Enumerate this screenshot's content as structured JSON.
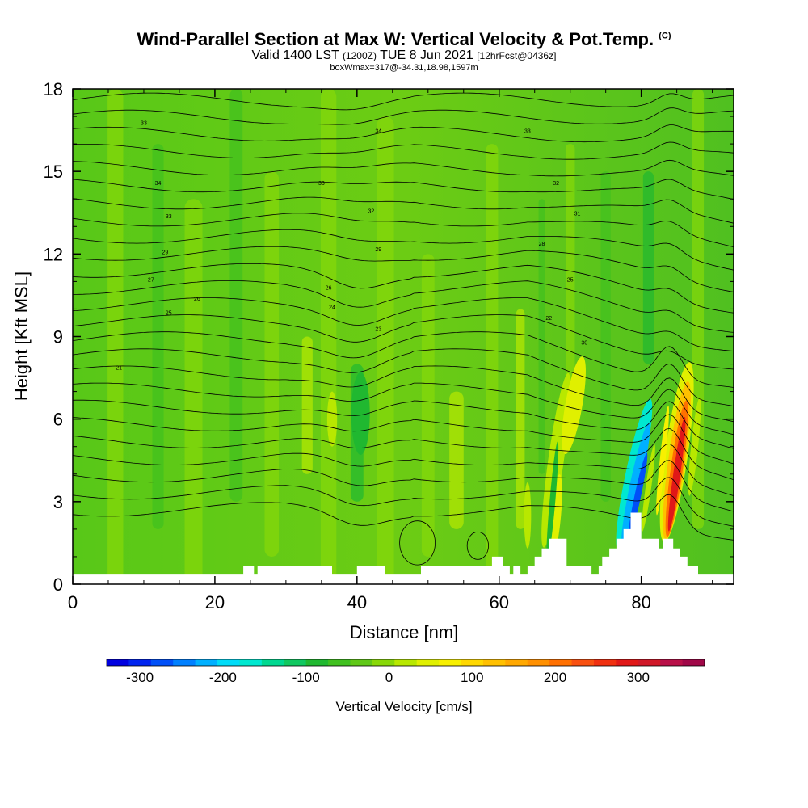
{
  "title": {
    "main": "Wind-Parallel Section at Max W: Vertical Velocity & Pot.Temp.",
    "copyright": "(C)",
    "valid_prefix": "Valid 1400 LST",
    "valid_utc": "(1200Z)",
    "valid_day": "TUE 8 Jun 2021",
    "forecast": "[12hrFcst@0436z]",
    "box_info": "boxWmax=317@-34.31,18.98,1597m"
  },
  "chart_data": {
    "type": "heatmap",
    "xlabel": "Distance [nm]",
    "ylabel": "Height [Kft MSL]",
    "xlim": [
      0,
      93
    ],
    "ylim": [
      0,
      18
    ],
    "x_ticks": [
      0,
      20,
      40,
      60,
      80
    ],
    "y_ticks": [
      0,
      3,
      6,
      9,
      12,
      15,
      18
    ],
    "colorbar": {
      "label": "Vertical Velocity [cm/s]",
      "ticks": [
        -300,
        -200,
        -100,
        0,
        100,
        200,
        300
      ],
      "min": -340,
      "max": 380,
      "step": 20,
      "colors": [
        "#0000e0",
        "#0024f0",
        "#0050f8",
        "#0080ff",
        "#00b0ff",
        "#00dcf8",
        "#00e8d0",
        "#00d890",
        "#10c860",
        "#20b830",
        "#40c020",
        "#60c818",
        "#88d808",
        "#b8e800",
        "#e0f000",
        "#f8f000",
        "#ffd800",
        "#ffc000",
        "#ffa800",
        "#ff9000",
        "#ff7000",
        "#f85010",
        "#f03010",
        "#e01818",
        "#d01828",
        "#b81048",
        "#a00848"
      ]
    },
    "features": {
      "max_updraft_cm_s": 317,
      "max_updraft_distance_nm": 85,
      "max_downdraft_distance_nm": 79
    },
    "contour_labels": [
      "33",
      "34",
      "33",
      "34",
      "33",
      "32",
      "33",
      "32",
      "31",
      "29",
      "29",
      "28",
      "27",
      "26",
      "25",
      "26",
      "25",
      "24",
      "23",
      "22",
      "21",
      "30"
    ]
  }
}
